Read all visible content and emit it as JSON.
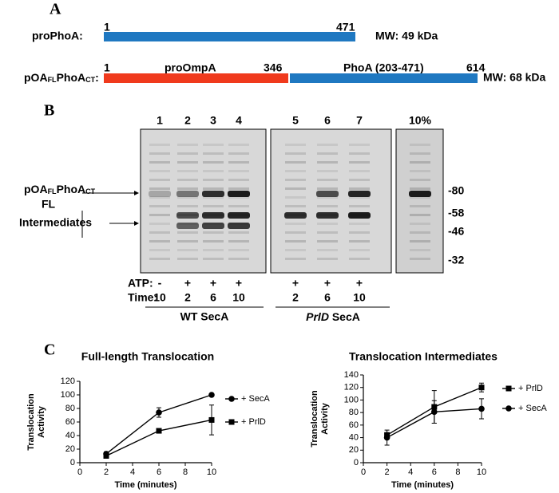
{
  "panel_a": {
    "letter": "A",
    "prophoa": {
      "label": "proPhoA:",
      "start": "1",
      "end": "471",
      "mw": "MW: 49 kDa"
    },
    "fusion": {
      "label_parts": [
        "pOA",
        "FL",
        "PhoA",
        "CT",
        ":"
      ],
      "start": "1",
      "proompa": "proOmpA",
      "junction": "346",
      "phoa": "PhoA (203-471)",
      "end": "614",
      "mw": "MW: 68 kDa"
    }
  },
  "panel_b": {
    "letter": "B",
    "lanes": [
      "1",
      "2",
      "3",
      "4",
      "5",
      "6",
      "7"
    ],
    "reference_lane": "10%",
    "markers": [
      "-80",
      "-58",
      "-46",
      "-32"
    ],
    "band_label_parts": [
      "pOA",
      "FL",
      "PhoA",
      "CT"
    ],
    "fl_label": "FL",
    "intermediates_label": "Intermediates",
    "atp_label": "ATP:",
    "atp": [
      "-",
      "+",
      "+",
      "+",
      "+",
      "+",
      "+"
    ],
    "time_label": "Time:",
    "times": [
      "10",
      "2",
      "6",
      "10",
      "2",
      "6",
      "10"
    ],
    "group_wt": "WT SecA",
    "group_prld_italic": "PrlD",
    "group_prld_rest": "SecA"
  },
  "panel_c": {
    "letter": "C"
  },
  "chart_data": [
    {
      "type": "line",
      "title": "Full-length Translocation",
      "x_label": "Time (minutes)",
      "y_label_lines": [
        "Translocation",
        "Activity"
      ],
      "x": [
        2,
        6,
        10
      ],
      "xlim": [
        0,
        10
      ],
      "xticks": [
        0,
        2,
        4,
        6,
        8,
        10
      ],
      "ylim": [
        0,
        120
      ],
      "yticks": [
        0,
        20,
        40,
        60,
        80,
        100,
        120
      ],
      "series": [
        {
          "name": "+ SecA",
          "marker": "circle",
          "color": "#000000",
          "values": [
            13,
            74,
            100
          ],
          "errors": [
            3,
            7,
            1
          ]
        },
        {
          "name": "+ PrlD",
          "marker": "square",
          "color": "#000000",
          "values": [
            10,
            47,
            63
          ],
          "errors": [
            2,
            2,
            22
          ]
        }
      ]
    },
    {
      "type": "line",
      "title": "Translocation Intermediates",
      "x_label": "Time (minutes)",
      "y_label_lines": [
        "Translocation",
        "Activity"
      ],
      "x": [
        2,
        6,
        10
      ],
      "xlim": [
        0,
        10
      ],
      "xticks": [
        0,
        2,
        4,
        6,
        8,
        10
      ],
      "ylim": [
        0,
        140
      ],
      "yticks": [
        0,
        20,
        40,
        60,
        80,
        100,
        120,
        140
      ],
      "series": [
        {
          "name": "+ PrlD",
          "marker": "square",
          "color": "#000000",
          "values": [
            44,
            89,
            120
          ],
          "errors": [
            4,
            26,
            7
          ]
        },
        {
          "name": "+ SecA",
          "marker": "circle",
          "color": "#000000",
          "values": [
            40,
            81,
            86
          ],
          "errors": [
            12,
            18,
            16
          ]
        }
      ]
    }
  ]
}
